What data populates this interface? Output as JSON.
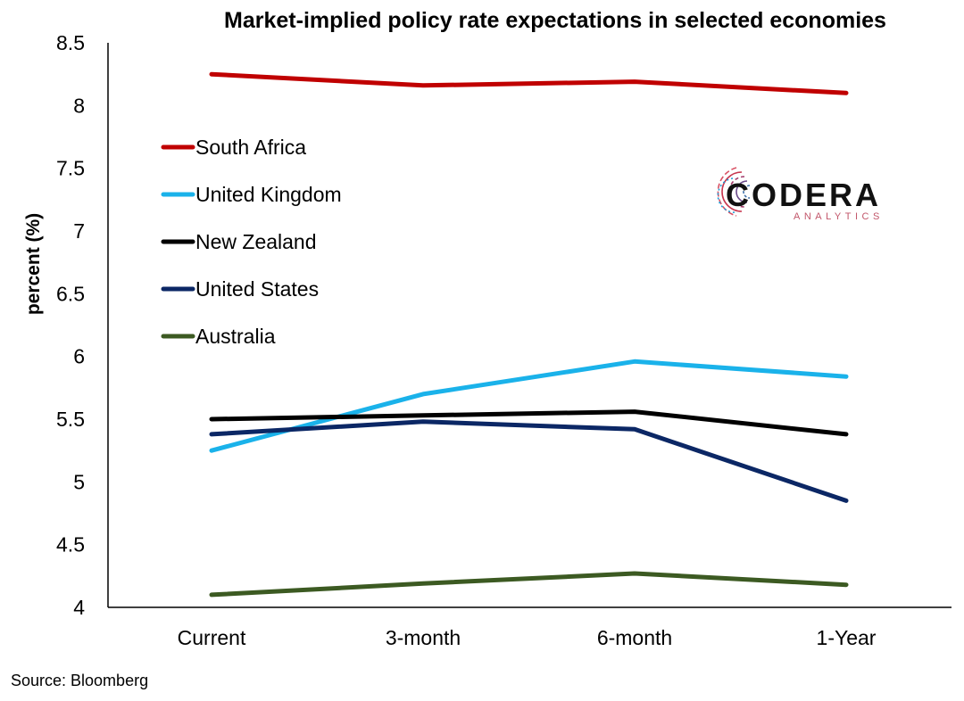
{
  "chart_data": {
    "type": "line",
    "title": "Market-implied policy rate expectations in selected economies",
    "xlabel": "",
    "ylabel": "percent (%)",
    "categories": [
      "Current",
      "3-month",
      "6-month",
      "1-Year"
    ],
    "ylim": [
      4,
      8.5
    ],
    "yticks": [
      "4",
      "4.5",
      "5",
      "5.5",
      "6",
      "6.5",
      "7",
      "7.5",
      "8",
      "8.5"
    ],
    "grid": false,
    "legend_position": "top-left",
    "series": [
      {
        "name": "South Africa",
        "color": "#c00000",
        "values": [
          8.25,
          8.16,
          8.19,
          8.1
        ]
      },
      {
        "name": "United Kingdom",
        "color": "#1ab2ea",
        "values": [
          5.25,
          5.7,
          5.96,
          5.84
        ]
      },
      {
        "name": "New Zealand",
        "color": "#000000",
        "values": [
          5.5,
          5.53,
          5.56,
          5.38
        ]
      },
      {
        "name": "United States",
        "color": "#0b2765",
        "values": [
          5.38,
          5.48,
          5.42,
          4.85
        ]
      },
      {
        "name": "Australia",
        "color": "#3c5a22",
        "values": [
          4.1,
          4.19,
          4.27,
          4.18
        ]
      }
    ]
  },
  "source": "Source: Bloomberg",
  "logo": {
    "name": "CODERA",
    "tagline": "ANALYTICS",
    "icon": "fingerprint-icon"
  }
}
